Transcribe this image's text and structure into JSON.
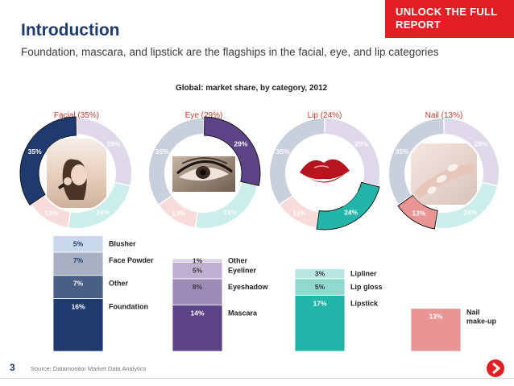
{
  "banner": {
    "text": "UNLOCK THE FULL\nREPORT"
  },
  "header": {
    "title": "Introduction",
    "subtitle": "Foundation, mascara, and lipstick are the flagships in the facial, eye, and lip categories"
  },
  "chart_title": "Global: market share, by category, 2012",
  "footer": {
    "page_number": "3",
    "source": "Source: Datamonitor Market Data Analytics"
  },
  "colors": {
    "facial": "#1f3a6e",
    "eye": "#5c4287",
    "lip": "#22b5aa",
    "nail": "#e99596",
    "ghost_facial": "#c8d0de",
    "ghost_eye": "#ded8ea",
    "ghost_lip": "#cbeeea",
    "ghost_nail": "#f8dcdc",
    "category_label": "#c0392b",
    "brand_red": "#e31e24"
  },
  "chart_data": [
    {
      "type": "pie",
      "title": "Global: market share, by category, 2012",
      "categories": [
        "Facial",
        "Eye",
        "Lip",
        "Nail"
      ],
      "values": [
        35,
        29,
        24,
        13
      ],
      "panels": [
        {
          "label": "Facial (35%)",
          "highlight": "Facial"
        },
        {
          "label": "Eye (29%)",
          "highlight": "Eye"
        },
        {
          "label": "Lip (24%)",
          "highlight": "Lip"
        },
        {
          "label": "Nail (13%)",
          "highlight": "Nail"
        }
      ]
    },
    {
      "type": "bar",
      "stacked": true,
      "title": "",
      "bars": [
        {
          "category": "Facial",
          "segments": [
            {
              "name": "Foundation",
              "value": 16,
              "label": "16%"
            },
            {
              "name": "Other",
              "value": 7,
              "label": "7%"
            },
            {
              "name": "Face Powder",
              "value": 7,
              "label": "7%"
            },
            {
              "name": "Blusher",
              "value": 5,
              "label": "5%"
            }
          ]
        },
        {
          "category": "Eye",
          "segments": [
            {
              "name": "Mascara",
              "value": 14,
              "label": "14%"
            },
            {
              "name": "Eyeshadow",
              "value": 8,
              "label": "8%"
            },
            {
              "name": "Eyeliner",
              "value": 5,
              "label": "5%"
            },
            {
              "name": "Other",
              "value": 1,
              "label": "1%"
            }
          ]
        },
        {
          "category": "Lip",
          "segments": [
            {
              "name": "Lipstick",
              "value": 17,
              "label": "17%"
            },
            {
              "name": "Lip gloss",
              "value": 5,
              "label": "5%"
            },
            {
              "name": "Lipliner",
              "value": 3,
              "label": "3%"
            }
          ]
        },
        {
          "category": "Nail",
          "segments": [
            {
              "name": "Nail make-up",
              "value": 13,
              "label": "13%"
            }
          ]
        }
      ]
    }
  ]
}
